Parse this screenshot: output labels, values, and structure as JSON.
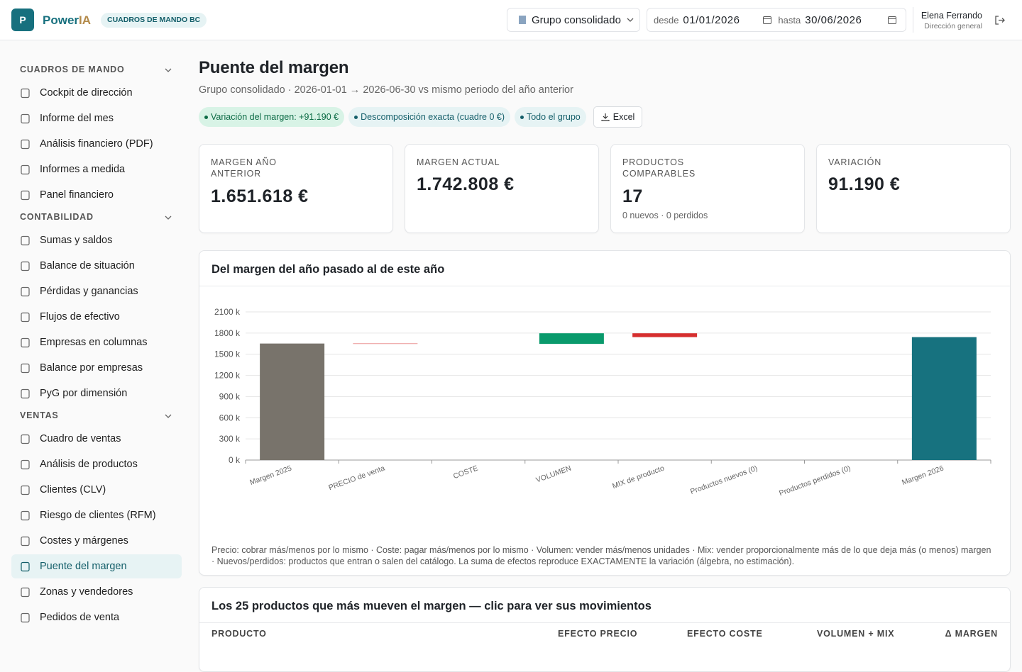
{
  "header": {
    "logo": "P",
    "brand_a": "Power",
    "brand_b": "IA",
    "badge": "CUADROS DE MANDO BC",
    "group_select": "Grupo consolidado",
    "from_label": "desde",
    "from_date": "01/01/2026",
    "to_label": "hasta",
    "to_date": "30/06/2026",
    "user_name": "Elena Ferrando",
    "user_role": "Dirección general"
  },
  "sidebar": {
    "sections": [
      {
        "title": "CUADROS DE MANDO",
        "items": [
          {
            "label": "Cockpit de dirección"
          },
          {
            "label": "Informe del mes"
          },
          {
            "label": "Análisis financiero (PDF)"
          },
          {
            "label": "Informes a medida"
          },
          {
            "label": "Panel financiero"
          }
        ]
      },
      {
        "title": "CONTABILIDAD",
        "items": [
          {
            "label": "Sumas y saldos"
          },
          {
            "label": "Balance de situación"
          },
          {
            "label": "Pérdidas y ganancias"
          },
          {
            "label": "Flujos de efectivo"
          },
          {
            "label": "Empresas en columnas"
          },
          {
            "label": "Balance por empresas"
          },
          {
            "label": "PyG por dimensión"
          }
        ]
      },
      {
        "title": "VENTAS",
        "items": [
          {
            "label": "Cuadro de ventas"
          },
          {
            "label": "Análisis de productos"
          },
          {
            "label": "Clientes (CLV)"
          },
          {
            "label": "Riesgo de clientes (RFM)"
          },
          {
            "label": "Costes y márgenes"
          },
          {
            "label": "Puente del margen",
            "active": true
          },
          {
            "label": "Zonas y vendedores"
          },
          {
            "label": "Pedidos de venta"
          }
        ]
      }
    ]
  },
  "page": {
    "title": "Puente del margen",
    "subtitle": "Grupo consolidado · 2026-01-01 → 2026-06-30 vs mismo periodo del año anterior",
    "chips": [
      {
        "text": "Variación del margen: +91.190 €",
        "style": "green"
      },
      {
        "text": "Descomposición exacta (cuadre 0 €)",
        "style": "teal"
      },
      {
        "text": "Todo el grupo",
        "style": "teal"
      }
    ],
    "excel": "Excel"
  },
  "kpis": [
    {
      "label": "MARGEN AÑO ANTERIOR",
      "value": "1.651.618 €"
    },
    {
      "label": "MARGEN ACTUAL",
      "value": "1.742.808 €"
    },
    {
      "label": "PRODUCTOS COMPARABLES",
      "value": "17",
      "note": "0 nuevos · 0 perdidos"
    },
    {
      "label": "VARIACIÓN",
      "value": "91.190 €"
    }
  ],
  "chart_card": {
    "title": "Del margen del año pasado al de este año",
    "footnote": "Precio: cobrar más/menos por lo mismo · Coste: pagar más/menos por lo mismo · Volumen: vender más/menos unidades · Mix: vender proporcionalmente más de lo que deja más (o menos) margen · Nuevos/perdidos: productos que entran o salen del catálogo. La suma de efectos reproduce EXACTAMENTE la variación (álgebra, no estimación)."
  },
  "chart_data": {
    "type": "waterfall",
    "categories": [
      "Margen 2025",
      "PRECIO de venta",
      "COSTE",
      "VOLUMEN",
      "MIX de producto",
      "Productos nuevos (0)",
      "Productos perdidos (0)",
      "Margen 2026"
    ],
    "values": [
      1651.618,
      -5.0,
      0,
      150.3,
      -54.11,
      0,
      0,
      1742.808
    ],
    "measure": [
      "absolute",
      "relative",
      "relative",
      "relative",
      "relative",
      "relative",
      "relative",
      "total"
    ],
    "colors": {
      "absolute": "#78736b",
      "increase": "#0a9a6c",
      "decrease": "#d62f2f",
      "total": "#17727f"
    },
    "ylim": [
      0,
      2100
    ],
    "yticks": [
      {
        "value": 0,
        "label": "0 k"
      },
      {
        "value": 300,
        "label": "300 k"
      },
      {
        "value": 600,
        "label": "600 k"
      },
      {
        "value": 900,
        "label": "900 k"
      },
      {
        "value": 1200,
        "label": "1200 k"
      },
      {
        "value": 1500,
        "label": "1500 k"
      },
      {
        "value": 1800,
        "label": "1800 k"
      },
      {
        "value": 2100,
        "label": "2100 k"
      }
    ],
    "grid": true
  },
  "table_card": {
    "title": "Los 25 productos que más mueven el margen — clic para ver sus movimientos",
    "headers": [
      "PRODUCTO",
      "EFECTO PRECIO",
      "EFECTO COSTE",
      "VOLUMEN + MIX",
      "Δ MARGEN"
    ]
  }
}
